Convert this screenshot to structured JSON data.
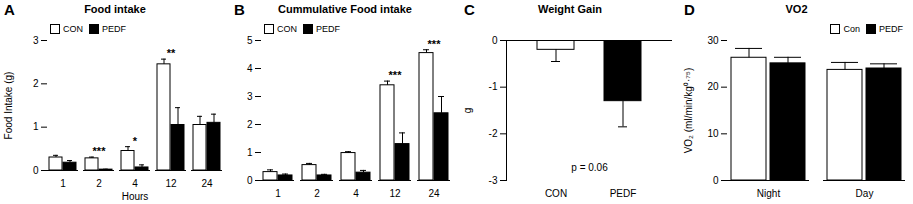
{
  "chart_data": [
    {
      "type": "bar",
      "panel": "A",
      "title": "Food intake",
      "x_label": "Hours",
      "y_label": "Food Intake (g)",
      "categories": [
        "1",
        "2",
        "4",
        "12",
        "24"
      ],
      "series": [
        {
          "name": "CON",
          "color": "#ffffff",
          "values": [
            0.3,
            0.28,
            0.45,
            2.45,
            1.05
          ],
          "errors": [
            0.05,
            0.03,
            0.1,
            0.12,
            0.2
          ]
        },
        {
          "name": "PEDF",
          "color": "#000000",
          "values": [
            0.18,
            0.02,
            0.07,
            1.05,
            1.1
          ],
          "errors": [
            0.05,
            0.01,
            0.06,
            0.4,
            0.2
          ]
        }
      ],
      "ylim": [
        0,
        3
      ],
      "yticks": [
        0,
        1,
        2,
        3
      ],
      "legend": "upper left",
      "annotations": [
        {
          "category": "2",
          "text": "***"
        },
        {
          "category": "4",
          "text": "*"
        },
        {
          "category": "12",
          "text": "**"
        }
      ]
    },
    {
      "type": "bar",
      "panel": "B",
      "title": "Cummulative Food intake",
      "categories": [
        "1",
        "2",
        "4",
        "12",
        "24"
      ],
      "series": [
        {
          "name": "CON",
          "color": "#ffffff",
          "values": [
            0.3,
            0.55,
            0.98,
            3.4,
            4.55
          ],
          "errors": [
            0.08,
            0.06,
            0.05,
            0.15,
            0.12
          ]
        },
        {
          "name": "PEDF",
          "color": "#000000",
          "values": [
            0.18,
            0.18,
            0.28,
            1.3,
            2.4
          ],
          "errors": [
            0.05,
            0.04,
            0.08,
            0.4,
            0.6
          ]
        }
      ],
      "ylim": [
        0,
        5
      ],
      "yticks": [
        0,
        1,
        2,
        3,
        4,
        5
      ],
      "legend": "upper left",
      "annotations": [
        {
          "category": "12",
          "text": "***"
        },
        {
          "category": "24",
          "text": "***"
        }
      ]
    },
    {
      "type": "bar",
      "panel": "C",
      "title": "Weight Gain",
      "y_label": "g",
      "categories": [
        "CON",
        "PEDF"
      ],
      "values": [
        -0.2,
        -1.3
      ],
      "errors": [
        0.25,
        0.55
      ],
      "colors": [
        "#ffffff",
        "#000000"
      ],
      "ylim": [
        -3,
        0
      ],
      "yticks": [
        -3,
        -2,
        -1,
        0
      ],
      "annotation": "p = 0.06"
    },
    {
      "type": "bar",
      "panel": "D",
      "title": "VO2",
      "y_label": "VO₂ (ml/min/kg⁰·⁷⁵)",
      "categories": [
        "Night",
        "Day"
      ],
      "series": [
        {
          "name": "Con",
          "color": "#ffffff",
          "values": [
            26.3,
            23.7
          ],
          "errors": [
            2,
            1.6
          ]
        },
        {
          "name": "PEDF",
          "color": "#000000",
          "values": [
            25.1,
            24
          ],
          "errors": [
            1.3,
            1
          ]
        }
      ],
      "ylim": [
        0,
        30
      ],
      "yticks": [
        0,
        10,
        20,
        30
      ],
      "legend": "upper right"
    }
  ]
}
